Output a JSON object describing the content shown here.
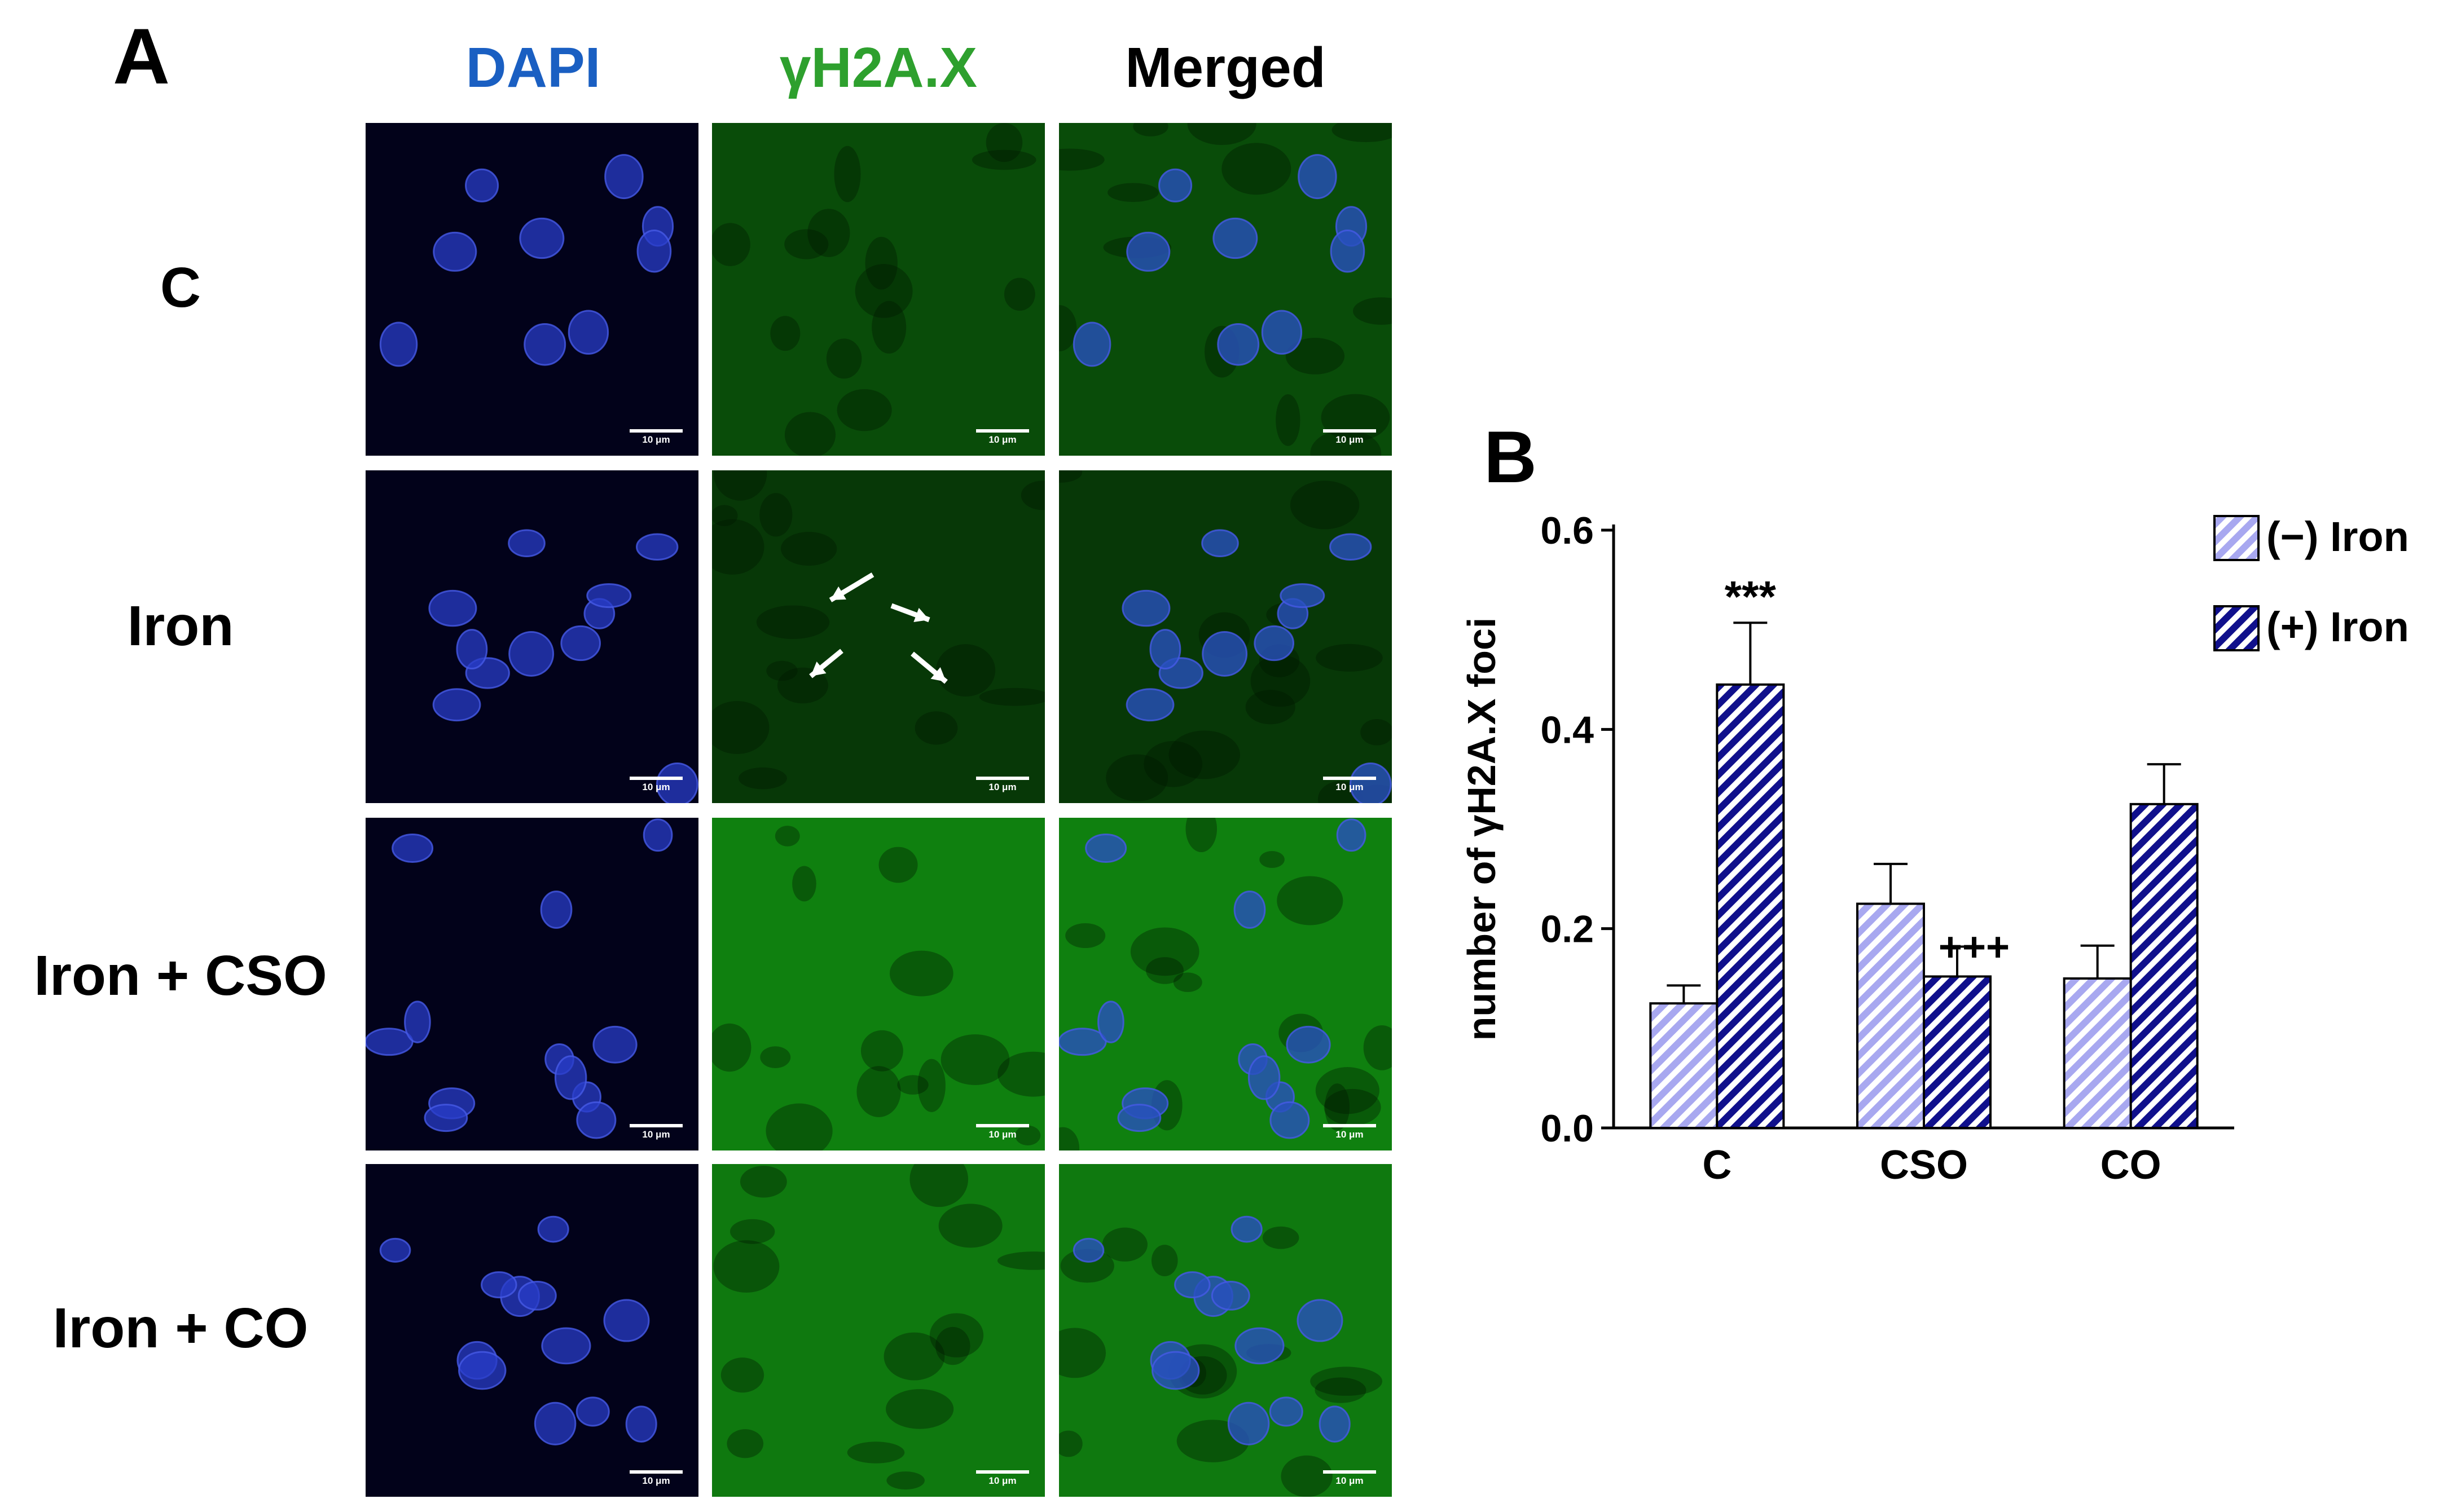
{
  "panel_a": {
    "letter": "A",
    "columns": [
      {
        "label": "DAPI",
        "color": "#1a5fc2"
      },
      {
        "label": "γH2A.X",
        "color": "#2ea02e"
      },
      {
        "label": "Merged",
        "color": "#000000"
      }
    ],
    "rows": [
      "C",
      "Iron",
      "Iron + CSO",
      "Iron + CO"
    ],
    "scale_bar_label": "10 μm"
  },
  "panel_b": {
    "letter": "B"
  },
  "chart_data": {
    "type": "bar",
    "ylabel": "number of γH2A.X foci",
    "xlabel": "",
    "ylim": [
      0,
      0.6
    ],
    "yticks": [
      "0.0",
      "0.2",
      "0.4",
      "0.6"
    ],
    "categories": [
      "C",
      "CSO",
      "CO"
    ],
    "series": [
      {
        "name": "(−) Iron",
        "values": [
          0.125,
          0.225,
          0.15
        ],
        "errors": [
          0.018,
          0.04,
          0.033
        ],
        "color": "#a8a8f0",
        "hatch": "diagonal-stripes"
      },
      {
        "name": "(+) Iron",
        "values": [
          0.445,
          0.152,
          0.325
        ],
        "errors": [
          0.062,
          0.03,
          0.04
        ],
        "color": "#10108c",
        "hatch": "diagonal-stripes"
      }
    ],
    "annotations": [
      {
        "text": "***",
        "category": "C",
        "series": "(+) Iron"
      },
      {
        "text": "+++",
        "category": "CSO",
        "series": "(+) Iron"
      }
    ],
    "legend_position": "top-right"
  }
}
